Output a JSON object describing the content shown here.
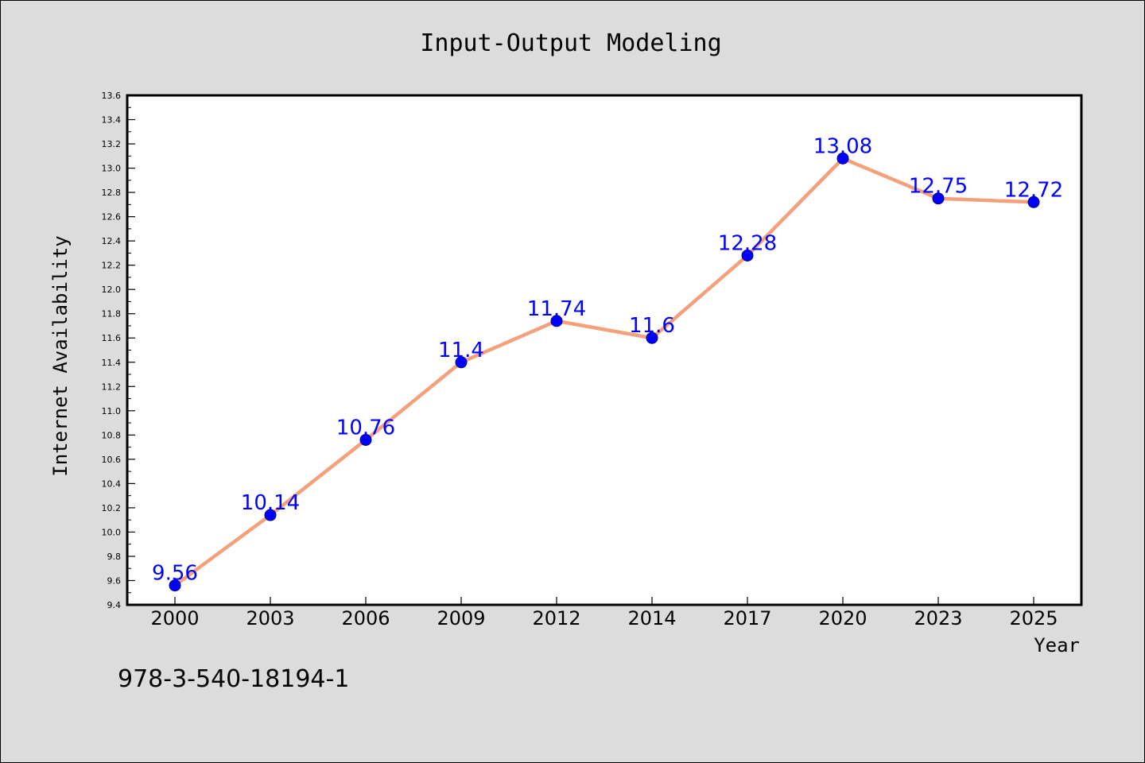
{
  "chart_data": {
    "type": "line",
    "title": "Input-Output Modeling",
    "xlabel": "Year",
    "ylabel": "Internet Availability",
    "categories": [
      "2000",
      "2003",
      "2006",
      "2009",
      "2012",
      "2014",
      "2017",
      "2020",
      "2023",
      "2025"
    ],
    "series": [
      {
        "values": [
          9.56,
          10.14,
          10.76,
          11.4,
          11.74,
          11.6,
          12.28,
          13.08,
          12.75,
          12.72
        ],
        "line_color": "#f4a07c",
        "marker_color": "#0000ff"
      }
    ],
    "data_labels": [
      "9.56",
      "10.14",
      "10.76",
      "11.4",
      "11.74",
      "11.6",
      "12.28",
      "13.08",
      "12.75",
      "12.72"
    ],
    "data_label_color": "#0000ff",
    "ylim": [
      9.4,
      13.6
    ],
    "yticks": [
      9.4,
      9.6,
      9.8,
      10.0,
      10.2,
      10.4,
      10.6,
      10.8,
      11.0,
      11.2,
      11.4,
      11.6,
      11.8,
      12.0,
      12.2,
      12.4,
      12.6,
      12.8,
      13.0,
      13.2,
      13.4,
      13.6
    ],
    "ytick_labels": [
      "9.4",
      "9.6",
      "9.8",
      "10.0",
      "10.2",
      "10.4",
      "10.6",
      "10.8",
      "11.0",
      "11.2",
      "11.4",
      "11.6",
      "11.8",
      "12.0",
      "12.2",
      "12.4",
      "12.6",
      "12.8",
      "13.0",
      "13.2",
      "13.4",
      "13.6"
    ],
    "grid": false,
    "legend": "none"
  },
  "footer_text": "978-3-540-18194-1"
}
